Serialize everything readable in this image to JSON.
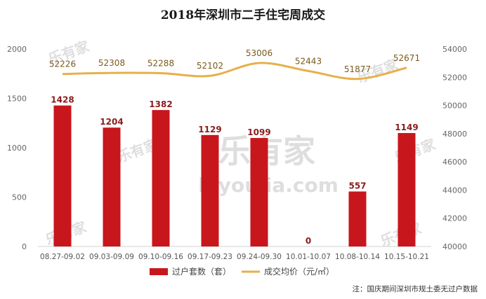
{
  "chart_data": {
    "type": "bar",
    "title": "2018年深圳市二手住宅周成交",
    "categories": [
      "08.27-09.02",
      "09.03-09.09",
      "09.10-09.16",
      "09.17-09.23",
      "09.24-09.30",
      "10.01-10.07",
      "10.08-10.14",
      "10.15-10.21"
    ],
    "series": [
      {
        "name": "过户套数（套）",
        "type": "bar",
        "axis": "left",
        "color": "#c8161d",
        "values": [
          1428,
          1204,
          1382,
          1129,
          1099,
          0,
          557,
          1149
        ]
      },
      {
        "name": "成交均价（元/㎡）",
        "type": "line",
        "axis": "right",
        "color": "#e6b04a",
        "values": [
          52226,
          52308,
          52288,
          52102,
          53006,
          52443,
          51877,
          52671
        ]
      }
    ],
    "y_left": {
      "range": [
        0,
        2000
      ],
      "ticks": [
        0,
        500,
        1000,
        1500,
        2000
      ]
    },
    "y_right": {
      "range": [
        40000,
        54000
      ],
      "ticks": [
        40000,
        42000,
        44000,
        46000,
        48000,
        50000,
        52000,
        54000
      ]
    },
    "legend_position": "bottom",
    "grid": false,
    "note": "注：国庆期间深圳市规土委无过户数据"
  },
  "watermark": {
    "logo": "乐有家",
    "domain": "leyoujia.com"
  }
}
